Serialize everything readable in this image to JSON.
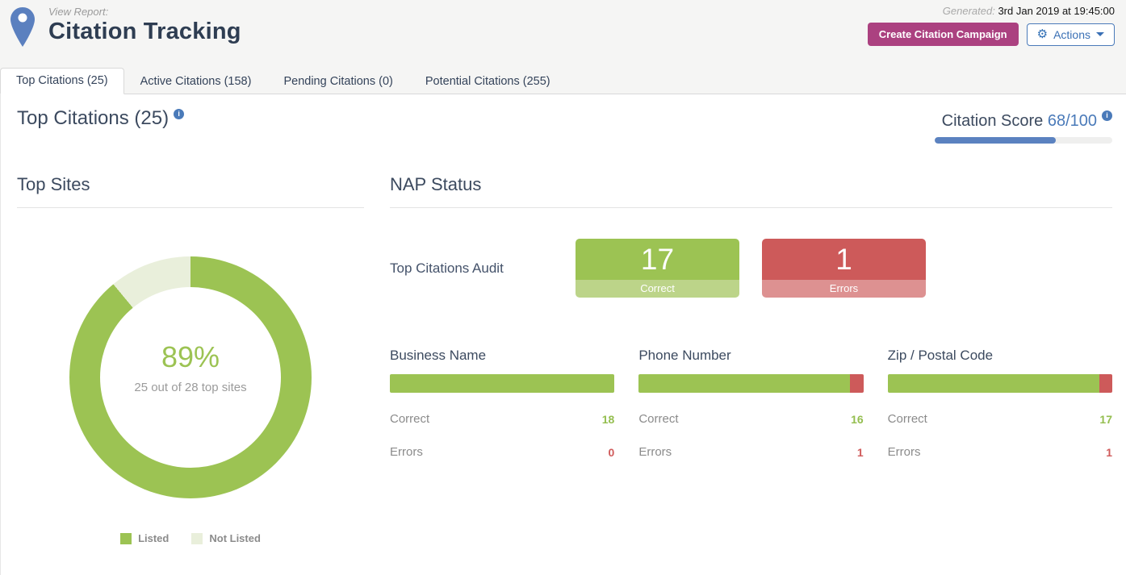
{
  "header": {
    "kicker": "View Report:",
    "title": "Citation Tracking",
    "generated_label": "Generated:",
    "generated_value": "3rd Jan 2019 at 19:45:00",
    "create_button": "Create Citation Campaign",
    "actions_button": "Actions"
  },
  "tabs": [
    {
      "label": "Top Citations (25)",
      "active": true
    },
    {
      "label": "Active Citations (158)",
      "active": false
    },
    {
      "label": "Pending Citations (0)",
      "active": false
    },
    {
      "label": "Potential Citations (255)",
      "active": false
    }
  ],
  "summary": {
    "title": "Top Citations (25)",
    "score_label": "Citation Score",
    "score_value": "68/100",
    "score_percent": 68
  },
  "top_sites": {
    "title": "Top Sites",
    "percent": "89%",
    "subtitle": "25 out of 28 top sites",
    "legend": [
      {
        "label": "Listed",
        "color": "#9cc353"
      },
      {
        "label": "Not Listed",
        "color": "#e9efdb"
      }
    ]
  },
  "nap_status": {
    "title": "NAP Status",
    "audit_label": "Top Citations Audit",
    "correct_box": {
      "value": "17",
      "label": "Correct"
    },
    "errors_box": {
      "value": "1",
      "label": "Errors"
    },
    "fields": [
      {
        "name": "Business Name",
        "correct_label": "Correct",
        "correct": "18",
        "errors_label": "Errors",
        "errors": "0",
        "green_pct": 100
      },
      {
        "name": "Phone Number",
        "correct_label": "Correct",
        "correct": "16",
        "errors_label": "Errors",
        "errors": "1",
        "green_pct": 94.1
      },
      {
        "name": "Zip / Postal Code",
        "correct_label": "Correct",
        "correct": "17",
        "errors_label": "Errors",
        "errors": "1",
        "green_pct": 94.4
      }
    ]
  },
  "colors": {
    "accent_blue": "#4a7ab9",
    "progress_blue": "#5b82c0",
    "magenta": "#ab4180",
    "green": "#9cc353",
    "green_light": "#bcd489",
    "green_pale": "#e9efdb",
    "red": "#cd5a5a",
    "red_light": "#dd9191",
    "title_navy": "#2e3d52"
  },
  "chart_data": [
    {
      "type": "pie",
      "title": "Top Sites",
      "labels": [
        "Listed",
        "Not Listed"
      ],
      "values": [
        89,
        11
      ],
      "colors": [
        "#9cc353",
        "#e9efdb"
      ],
      "center_label": "89%",
      "center_sublabel": "25 out of 28 top sites",
      "legend_position": "bottom",
      "donut": true
    },
    {
      "type": "bar",
      "title": "NAP Status",
      "categories": [
        "Top Citations Audit",
        "Business Name",
        "Phone Number",
        "Zip / Postal Code"
      ],
      "series": [
        {
          "name": "Correct",
          "values": [
            17,
            18,
            16,
            17
          ],
          "color": "#9cc353"
        },
        {
          "name": "Errors",
          "values": [
            1,
            0,
            1,
            1
          ],
          "color": "#cd5a5a"
        }
      ]
    }
  ]
}
